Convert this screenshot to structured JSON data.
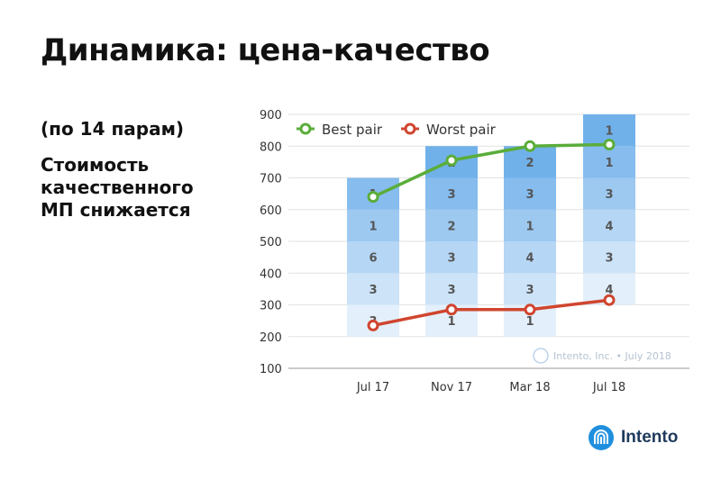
{
  "slide": {
    "title": "Динамика: цена-качество",
    "subtitle": "(по 14 парам)",
    "note_lines": [
      "Стоимость",
      "качественного",
      "МП снижается"
    ],
    "watermark": "Intento, Inc. • July 2018",
    "brand": "Intento"
  },
  "colors": {
    "best": "#5aad3a",
    "worst": "#d0452f",
    "segments": [
      "#e3f0fb",
      "#cce3f8",
      "#b5d6f5",
      "#9dc9f1",
      "#86bcee",
      "#71b1ea",
      "#5ea7e7"
    ],
    "brand": "#1f8fde"
  },
  "chart_data": {
    "type": "bar",
    "categories": [
      "Jul 17",
      "Nov 17",
      "Mar 18",
      "Jul 18"
    ],
    "ylim": [
      100,
      900
    ],
    "yticks": [
      100,
      200,
      300,
      400,
      500,
      600,
      700,
      800,
      900
    ],
    "grid": true,
    "legend_position": "top-left",
    "stacks": [
      {
        "base": 200,
        "step": 100,
        "counts": [
          "3",
          "3",
          "6",
          "1",
          "1"
        ]
      },
      {
        "base": 200,
        "step": 100,
        "counts": [
          "1",
          "3",
          "3",
          "2",
          "3",
          "2"
        ]
      },
      {
        "base": 200,
        "step": 100,
        "counts": [
          "1",
          "3",
          "4",
          "1",
          "3",
          "2"
        ]
      },
      {
        "base": 300,
        "step": 100,
        "counts": [
          "4",
          "3",
          "4",
          "3",
          "1",
          "1"
        ]
      }
    ],
    "series": [
      {
        "name": "Best pair",
        "values": [
          640,
          755,
          800,
          805
        ]
      },
      {
        "name": "Worst pair",
        "values": [
          235,
          285,
          285,
          315
        ]
      }
    ]
  }
}
